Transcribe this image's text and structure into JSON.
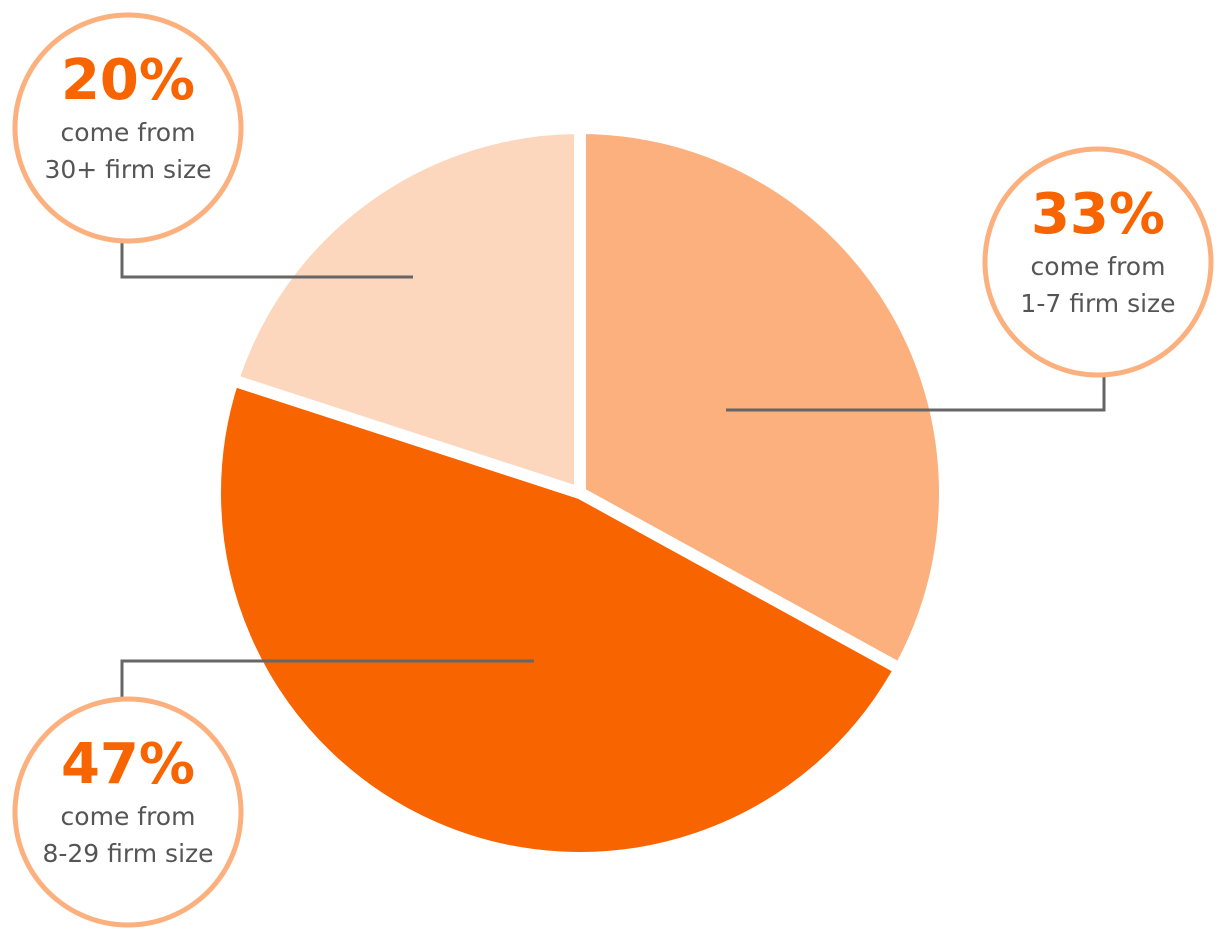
{
  "chart_data": {
    "type": "pie",
    "categories": [
      "1-7 firm size",
      "8-29 firm size",
      "30+ firm size"
    ],
    "values": [
      33,
      47,
      20
    ],
    "value_labels": [
      "33%",
      "47%",
      "20%"
    ],
    "label_prefix": "come from",
    "colors": [
      "#fbb07e",
      "#f76400",
      "#fcd6bd"
    ]
  }
}
